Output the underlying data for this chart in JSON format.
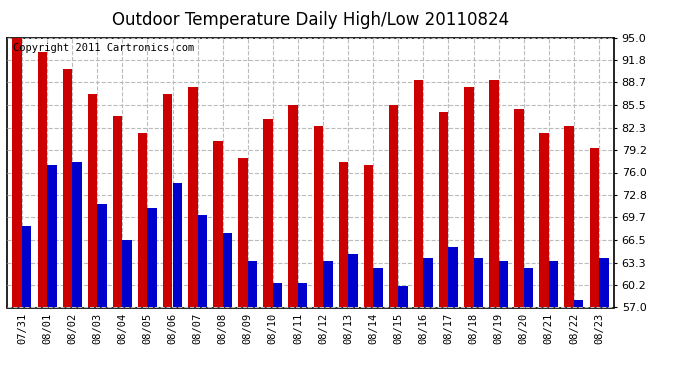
{
  "title": "Outdoor Temperature Daily High/Low 20110824",
  "copyright": "Copyright 2011 Cartronics.com",
  "dates": [
    "07/31",
    "08/01",
    "08/02",
    "08/03",
    "08/04",
    "08/05",
    "08/06",
    "08/07",
    "08/08",
    "08/09",
    "08/10",
    "08/11",
    "08/12",
    "08/13",
    "08/14",
    "08/15",
    "08/16",
    "08/17",
    "08/18",
    "08/19",
    "08/20",
    "08/21",
    "08/22",
    "08/23"
  ],
  "highs": [
    95.0,
    93.0,
    90.5,
    87.0,
    84.0,
    81.5,
    87.0,
    88.0,
    80.5,
    78.0,
    83.5,
    85.5,
    82.5,
    77.5,
    77.0,
    85.5,
    89.0,
    84.5,
    88.0,
    89.0,
    85.0,
    81.5,
    82.5,
    79.5
  ],
  "lows": [
    68.5,
    77.0,
    77.5,
    71.5,
    66.5,
    71.0,
    74.5,
    70.0,
    67.5,
    63.5,
    60.5,
    60.5,
    63.5,
    64.5,
    62.5,
    60.0,
    64.0,
    65.5,
    64.0,
    63.5,
    62.5,
    63.5,
    58.0,
    64.0
  ],
  "ylim_min": 57.0,
  "ylim_max": 95.0,
  "yticks": [
    57.0,
    60.2,
    63.3,
    66.5,
    69.7,
    72.8,
    76.0,
    79.2,
    82.3,
    85.5,
    88.7,
    91.8,
    95.0
  ],
  "high_color": "#cc0000",
  "low_color": "#0000cc",
  "background_color": "#ffffff",
  "grid_color": "#bbbbbb",
  "title_fontsize": 12,
  "copyright_fontsize": 7.5,
  "tick_fontsize": 8,
  "xlabel_fontsize": 7.5
}
